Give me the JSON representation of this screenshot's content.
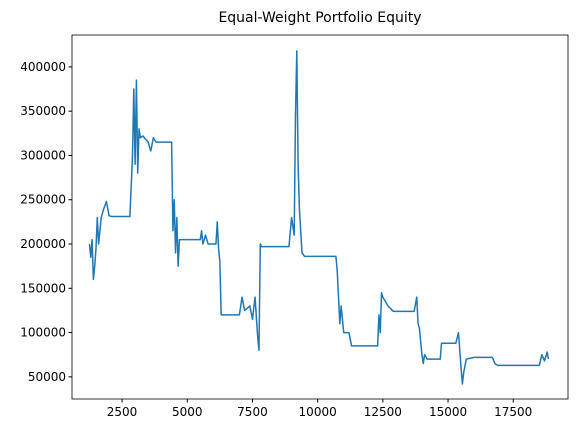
{
  "chart_data": {
    "type": "line",
    "title": "Equal-Weight Portfolio Equity",
    "x": [
      1250,
      1300,
      1350,
      1400,
      1450,
      1500,
      1550,
      1600,
      1650,
      1700,
      1800,
      1900,
      2000,
      2100,
      2800,
      2850,
      2900,
      2950,
      3000,
      3050,
      3100,
      3150,
      3200,
      3300,
      3500,
      3600,
      3700,
      3800,
      4400,
      4450,
      4500,
      4550,
      4600,
      4650,
      4700,
      5500,
      5550,
      5600,
      5700,
      5800,
      6100,
      6150,
      6200,
      6250,
      6300,
      7000,
      7100,
      7200,
      7400,
      7500,
      7600,
      7700,
      7750,
      7800,
      7850,
      8900,
      9000,
      9100,
      9150,
      9200,
      9250,
      9300,
      9400,
      9500,
      10700,
      10750,
      10800,
      10850,
      10900,
      11000,
      11200,
      11300,
      12300,
      12350,
      12400,
      12450,
      12500,
      12700,
      12900,
      13700,
      13800,
      13850,
      13900,
      14000,
      14050,
      14100,
      14200,
      14700,
      14750,
      15300,
      15400,
      15500,
      15550,
      15600,
      15700,
      16000,
      16700,
      16800,
      16900,
      18500,
      18600,
      18700,
      18800,
      18850
    ],
    "series": [
      {
        "name": "equity",
        "color": "#1f77b4",
        "values": [
          200000,
          185000,
          205000,
          160000,
          175000,
          195000,
          230000,
          200000,
          215000,
          230000,
          240000,
          248000,
          232000,
          231000,
          231000,
          265000,
          300000,
          375000,
          290000,
          385000,
          280000,
          330000,
          320000,
          322000,
          315000,
          305000,
          320000,
          315000,
          315000,
          215000,
          250000,
          190000,
          230000,
          175000,
          205000,
          205000,
          215000,
          200000,
          210000,
          200000,
          200000,
          225000,
          195000,
          180000,
          120000,
          120000,
          140000,
          125000,
          130000,
          115000,
          140000,
          95000,
          80000,
          200000,
          197000,
          197000,
          230000,
          210000,
          345000,
          418000,
          290000,
          240000,
          190000,
          186000,
          186000,
          170000,
          140000,
          110000,
          130000,
          100000,
          100000,
          85000,
          85000,
          120000,
          100000,
          145000,
          140000,
          130000,
          124000,
          124000,
          140000,
          110000,
          105000,
          75000,
          65000,
          75000,
          70000,
          70000,
          88000,
          88000,
          100000,
          60000,
          42000,
          55000,
          70000,
          72000,
          72000,
          65000,
          63000,
          63000,
          75000,
          68000,
          78000,
          70000
        ]
      }
    ],
    "xlim": [
      580,
      19600
    ],
    "ylim": [
      25000,
      436000
    ],
    "xticks": [
      2500,
      5000,
      7500,
      10000,
      12500,
      15000,
      17500
    ],
    "yticks": [
      50000,
      100000,
      150000,
      200000,
      250000,
      300000,
      350000,
      400000
    ]
  }
}
